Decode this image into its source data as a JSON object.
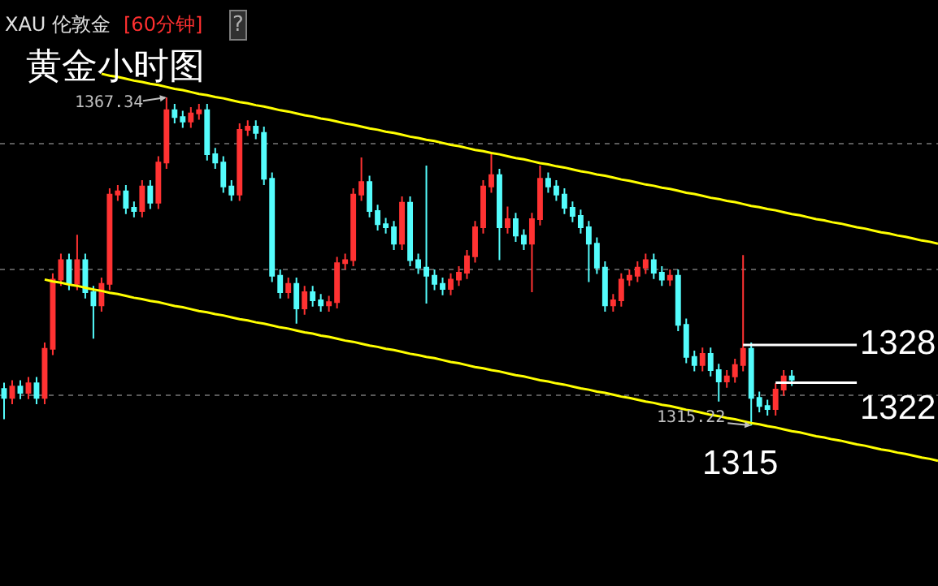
{
  "chart_data": {
    "type": "candlestick",
    "title": "黄金小时图",
    "categories": [
      null,
      null,
      null,
      null,
      null,
      null,
      null,
      null,
      null,
      null,
      null,
      null,
      null,
      null,
      null,
      null,
      null,
      null,
      null,
      null,
      null,
      null,
      null,
      null,
      null,
      null,
      null,
      null,
      null,
      null,
      null,
      null,
      null,
      null,
      null,
      null,
      null,
      null,
      null,
      null,
      null,
      null,
      null,
      null,
      null,
      null,
      null,
      null,
      null,
      null,
      null,
      null,
      null,
      null,
      null,
      null,
      null,
      null,
      null,
      null,
      null,
      null,
      null,
      null,
      null,
      null,
      null,
      null,
      null,
      null,
      null,
      null,
      null,
      null,
      null,
      null,
      null,
      null,
      null,
      null,
      null,
      null,
      null,
      null,
      null,
      null,
      null,
      null,
      null,
      null,
      null,
      null,
      null,
      null,
      null,
      null,
      null,
      null,
      null,
      null,
      null,
      null,
      null,
      null,
      null,
      null,
      null,
      null,
      null,
      null,
      null,
      null,
      null,
      null,
      null,
      null
    ],
    "ohlc": [
      [
        1321.0,
        1322.0,
        1316.2,
        1319.6
      ],
      [
        1319.6,
        1322.4,
        1318.6,
        1321.4
      ],
      [
        1321.4,
        1322.4,
        1319.4,
        1320.4
      ],
      [
        1320.4,
        1322.9,
        1319.4,
        1321.9
      ],
      [
        1321.9,
        1322.9,
        1318.6,
        1319.6
      ],
      [
        1319.6,
        1328.4,
        1318.6,
        1327.4
      ],
      [
        1327.4,
        1339.4,
        1326.4,
        1338.4
      ],
      [
        1338.4,
        1342.5,
        1337.4,
        1341.5
      ],
      [
        1341.5,
        1342.5,
        1336.7,
        1337.7
      ],
      [
        1337.7,
        1345.5,
        1336.7,
        1341.5
      ],
      [
        1341.5,
        1342.5,
        1335.4,
        1336.4
      ],
      [
        1336.4,
        1337.4,
        1329.0,
        1334.3
      ],
      [
        1334.3,
        1338.7,
        1333.3,
        1337.7
      ],
      [
        1337.7,
        1352.9,
        1336.7,
        1351.9
      ],
      [
        1351.9,
        1353.4,
        1350.9,
        1352.4
      ],
      [
        1352.4,
        1353.4,
        1348.8,
        1349.8
      ],
      [
        1349.8,
        1350.8,
        1348.3,
        1349.3
      ],
      [
        1349.3,
        1354.2,
        1348.3,
        1353.2
      ],
      [
        1353.2,
        1354.2,
        1349.6,
        1350.6
      ],
      [
        1350.6,
        1358.0,
        1349.6,
        1357.0
      ],
      [
        1357.0,
        1367.34,
        1356.0,
        1365.3
      ],
      [
        1365.3,
        1366.3,
        1363.2,
        1364.2
      ],
      [
        1364.2,
        1365.2,
        1362.5,
        1363.5
      ],
      [
        1363.5,
        1365.8,
        1362.5,
        1364.8
      ],
      [
        1364.8,
        1366.3,
        1363.8,
        1365.3
      ],
      [
        1365.3,
        1366.3,
        1357.3,
        1358.3
      ],
      [
        1358.3,
        1359.3,
        1356.0,
        1357.0
      ],
      [
        1357.0,
        1358.0,
        1352.2,
        1353.2
      ],
      [
        1353.2,
        1354.2,
        1350.9,
        1351.9
      ],
      [
        1351.9,
        1363.2,
        1350.9,
        1362.2
      ],
      [
        1362.2,
        1363.7,
        1361.2,
        1362.7
      ],
      [
        1362.7,
        1363.7,
        1360.7,
        1361.7
      ],
      [
        1361.7,
        1362.7,
        1353.4,
        1354.4
      ],
      [
        1354.4,
        1355.4,
        1338.0,
        1339.0
      ],
      [
        1339.0,
        1340.0,
        1335.4,
        1336.4
      ],
      [
        1336.4,
        1338.7,
        1335.4,
        1337.7
      ],
      [
        1337.7,
        1338.7,
        1331.4,
        1333.8
      ],
      [
        1333.8,
        1337.4,
        1332.8,
        1336.4
      ],
      [
        1336.4,
        1337.4,
        1334.1,
        1335.1
      ],
      [
        1335.1,
        1336.1,
        1333.3,
        1334.3
      ],
      [
        1334.3,
        1335.8,
        1333.3,
        1334.8
      ],
      [
        1334.8,
        1342.0,
        1333.8,
        1341.0
      ],
      [
        1341.0,
        1342.5,
        1340.0,
        1341.5
      ],
      [
        1341.5,
        1352.9,
        1340.5,
        1351.9
      ],
      [
        1351.9,
        1357.8,
        1350.9,
        1353.9
      ],
      [
        1353.9,
        1354.9,
        1348.3,
        1349.3
      ],
      [
        1349.3,
        1350.3,
        1346.2,
        1347.2
      ],
      [
        1347.2,
        1348.2,
        1345.7,
        1346.7
      ],
      [
        1346.7,
        1347.7,
        1343.1,
        1344.1
      ],
      [
        1344.1,
        1351.6,
        1343.1,
        1350.6
      ],
      [
        1350.6,
        1351.6,
        1340.5,
        1341.5
      ],
      [
        1341.5,
        1342.5,
        1339.3,
        1340.3
      ],
      [
        1340.3,
        1356.5,
        1334.6,
        1339.0
      ],
      [
        1339.0,
        1340.0,
        1336.7,
        1337.7
      ],
      [
        1337.7,
        1338.7,
        1335.9,
        1336.9
      ],
      [
        1336.9,
        1339.4,
        1335.9,
        1338.4
      ],
      [
        1338.4,
        1340.5,
        1337.4,
        1339.5
      ],
      [
        1339.5,
        1343.1,
        1338.5,
        1342.1
      ],
      [
        1342.1,
        1347.7,
        1341.1,
        1346.7
      ],
      [
        1346.7,
        1354.2,
        1345.7,
        1353.2
      ],
      [
        1353.2,
        1358.3,
        1352.2,
        1355.0
      ],
      [
        1355.0,
        1356.0,
        1341.5,
        1346.7
      ],
      [
        1346.7,
        1350.0,
        1345.7,
        1348.0
      ],
      [
        1348.0,
        1349.0,
        1344.4,
        1345.4
      ],
      [
        1345.4,
        1346.4,
        1343.1,
        1344.1
      ],
      [
        1344.1,
        1349.0,
        1336.4,
        1348.0
      ],
      [
        1348.0,
        1356.5,
        1347.0,
        1354.4
      ],
      [
        1354.4,
        1355.4,
        1352.2,
        1353.2
      ],
      [
        1353.2,
        1354.2,
        1350.9,
        1351.9
      ],
      [
        1351.9,
        1352.9,
        1348.8,
        1349.8
      ],
      [
        1349.8,
        1350.8,
        1347.5,
        1348.5
      ],
      [
        1348.5,
        1349.5,
        1345.7,
        1346.7
      ],
      [
        1346.7,
        1347.7,
        1338.0,
        1344.1
      ],
      [
        1344.1,
        1345.1,
        1339.3,
        1340.3
      ],
      [
        1340.3,
        1341.3,
        1333.3,
        1334.3
      ],
      [
        1334.3,
        1336.1,
        1333.3,
        1335.1
      ],
      [
        1335.1,
        1339.4,
        1334.1,
        1338.4
      ],
      [
        1338.4,
        1340.0,
        1337.4,
        1339.0
      ],
      [
        1339.0,
        1341.3,
        1338.0,
        1340.3
      ],
      [
        1340.3,
        1342.5,
        1339.3,
        1341.5
      ],
      [
        1341.5,
        1342.5,
        1338.5,
        1339.5
      ],
      [
        1339.5,
        1340.5,
        1337.4,
        1338.4
      ],
      [
        1338.4,
        1340.0,
        1337.4,
        1339.0
      ],
      [
        1339.0,
        1340.0,
        1330.2,
        1331.2
      ],
      [
        1331.2,
        1332.2,
        1325.1,
        1326.1
      ],
      [
        1326.1,
        1327.1,
        1323.8,
        1324.8
      ],
      [
        1324.8,
        1327.6,
        1323.8,
        1326.6
      ],
      [
        1326.6,
        1327.6,
        1323.0,
        1324.0
      ],
      [
        1324.0,
        1325.0,
        1319.0,
        1322.2
      ],
      [
        1322.2,
        1324.0,
        1321.2,
        1323.0
      ],
      [
        1323.0,
        1325.8,
        1322.0,
        1324.8
      ],
      [
        1324.8,
        1342.3,
        1323.8,
        1327.4
      ],
      [
        1327.4,
        1328.4,
        1315.22,
        1319.6
      ],
      [
        1319.6,
        1320.6,
        1317.3,
        1318.3
      ],
      [
        1318.3,
        1319.3,
        1316.8,
        1317.8
      ],
      [
        1317.8,
        1321.9,
        1316.8,
        1320.9
      ],
      [
        1320.9,
        1324.0,
        1319.9,
        1323.0
      ],
      [
        1323.0,
        1324.0,
        1321.5,
        1322.5
      ],
      null,
      null,
      null,
      null,
      null,
      null,
      null,
      null,
      null,
      null,
      null,
      null,
      null,
      null,
      null,
      null,
      null,
      null
    ],
    "colors": [
      "#54fcfc",
      "#ff3232",
      "#54fcfc",
      "#ff3232",
      "#54fcfc",
      "#ff3232",
      "#ff3232",
      "#ff3232",
      "#54fcfc",
      "#ff3232",
      "#54fcfc",
      "#54fcfc",
      "#ff3232",
      "#ff3232",
      "#ff3232",
      "#54fcfc",
      "#54fcfc",
      "#ff3232",
      "#54fcfc",
      "#ff3232",
      "#ff3232",
      "#54fcfc",
      "#54fcfc",
      "#ff3232",
      "#ff3232",
      "#54fcfc",
      "#54fcfc",
      "#54fcfc",
      "#54fcfc",
      "#ff3232",
      "#ff3232",
      "#54fcfc",
      "#54fcfc",
      "#54fcfc",
      "#54fcfc",
      "#ff3232",
      "#54fcfc",
      "#ff3232",
      "#54fcfc",
      "#54fcfc",
      "#ff3232",
      "#ff3232",
      "#ff3232",
      "#ff3232",
      "#ff3232",
      "#54fcfc",
      "#54fcfc",
      "#54fcfc",
      "#54fcfc",
      "#ff3232",
      "#54fcfc",
      "#54fcfc",
      "#54fcfc",
      "#54fcfc",
      "#54fcfc",
      "#ff3232",
      "#ff3232",
      "#ff3232",
      "#ff3232",
      "#ff3232",
      "#ff3232",
      "#54fcfc",
      "#ff3232",
      "#54fcfc",
      "#54fcfc",
      "#ff3232",
      "#ff3232",
      "#54fcfc",
      "#54fcfc",
      "#54fcfc",
      "#54fcfc",
      "#54fcfc",
      "#54fcfc",
      "#54fcfc",
      "#54fcfc",
      "#ff3232",
      "#ff3232",
      "#ff3232",
      "#ff3232",
      "#ff3232",
      "#54fcfc",
      "#54fcfc",
      "#ff3232",
      "#54fcfc",
      "#54fcfc",
      "#54fcfc",
      "#ff3232",
      "#54fcfc",
      "#54fcfc",
      "#ff3232",
      "#ff3232",
      "#ff3232",
      "#54fcfc",
      "#54fcfc",
      "#54fcfc",
      "#ff3232",
      "#ff3232",
      "#54fcfc",
      null,
      null,
      null,
      null,
      null,
      null,
      null,
      null,
      null,
      null,
      null,
      null,
      null,
      null,
      null,
      null,
      null,
      null
    ],
    "series": [
      {
        "type": "line",
        "color": "#ffff00",
        "values": [
          null,
          null,
          null,
          null,
          null,
          null,
          null,
          null,
          null,
          null,
          null,
          null,
          1371.1,
          1370.8,
          1370.6,
          1370.3,
          1370.0,
          1369.8,
          1369.5,
          1369.3,
          1369.0,
          1368.7,
          1368.5,
          1368.2,
          1367.9,
          1367.7,
          1367.4,
          1367.2,
          1366.9,
          1366.6,
          1366.4,
          1366.1,
          1365.9,
          1365.6,
          1365.3,
          1365.1,
          1364.8,
          1364.5,
          1364.3,
          1364.0,
          1363.8,
          1363.5,
          1363.2,
          1363.0,
          1362.7,
          1362.4,
          1362.2,
          1361.9,
          1361.7,
          1361.4,
          1361.1,
          1360.9,
          1360.6,
          1360.4,
          1360.1,
          1359.8,
          1359.6,
          1359.3,
          1359.0,
          1358.8,
          1358.5,
          1358.3,
          1358.0,
          1357.7,
          1357.5,
          1357.2,
          1356.9,
          1356.7,
          1356.4,
          1356.2,
          1355.9,
          1355.6,
          1355.4,
          1355.1,
          1354.9,
          1354.6,
          1354.3,
          1354.1,
          1353.8,
          1353.5,
          1353.3,
          1353.0,
          1352.8,
          1352.5,
          1352.2,
          1352.0,
          1351.7,
          1351.4,
          1351.2,
          1350.9,
          1350.7,
          1350.4,
          1350.1,
          1349.9,
          1349.6,
          1349.4,
          1349.1,
          1348.8,
          1348.6,
          1348.3,
          1348.0,
          1347.8,
          1347.5,
          1347.3,
          1347.0,
          1346.7,
          1346.5,
          1346.2,
          1345.9,
          1345.7,
          1345.4,
          1345.2,
          1344.9,
          1344.6,
          1344.4,
          1344.1
        ]
      },
      {
        "type": "line",
        "color": "#ffff00",
        "values": [
          null,
          null,
          null,
          null,
          null,
          1338.4,
          1338.1,
          1337.9,
          1337.6,
          1337.4,
          1337.1,
          1336.8,
          1336.6,
          1336.3,
          1336.1,
          1335.8,
          1335.5,
          1335.3,
          1335.0,
          1334.8,
          1334.5,
          1334.2,
          1334.0,
          1333.7,
          1333.4,
          1333.2,
          1332.9,
          1332.7,
          1332.4,
          1332.1,
          1331.9,
          1331.6,
          1331.4,
          1331.1,
          1330.8,
          1330.6,
          1330.3,
          1330.0,
          1329.8,
          1329.5,
          1329.3,
          1329.0,
          1328.7,
          1328.5,
          1328.2,
          1327.9,
          1327.7,
          1327.4,
          1327.2,
          1326.9,
          1326.6,
          1326.4,
          1326.1,
          1325.9,
          1325.6,
          1325.3,
          1325.1,
          1324.8,
          1324.5,
          1324.3,
          1324.0,
          1323.8,
          1323.5,
          1323.2,
          1323.0,
          1322.7,
          1322.4,
          1322.2,
          1321.9,
          1321.7,
          1321.4,
          1321.1,
          1320.9,
          1320.6,
          1320.4,
          1320.1,
          1319.8,
          1319.6,
          1319.3,
          1319.0,
          1318.8,
          1318.5,
          1318.3,
          1318.0,
          1317.7,
          1317.5,
          1317.2,
          1316.9,
          1316.7,
          1316.4,
          1316.2,
          1315.9,
          1315.6,
          1315.4,
          1315.1,
          1314.9,
          1314.6,
          1314.3,
          1314.1,
          1313.8,
          1313.5,
          1313.3,
          1313.0,
          1312.8,
          1312.5,
          1312.2,
          1312.0,
          1311.7,
          1311.4,
          1311.2,
          1310.9,
          1310.7,
          1310.4,
          1310.1,
          1309.9,
          1309.6
        ]
      },
      {
        "type": "line",
        "color": "#ffffff",
        "values": [
          null,
          null,
          null,
          null,
          null,
          null,
          null,
          null,
          null,
          null,
          null,
          null,
          null,
          null,
          null,
          null,
          null,
          null,
          null,
          null,
          null,
          null,
          null,
          null,
          null,
          null,
          null,
          null,
          null,
          null,
          null,
          null,
          null,
          null,
          null,
          null,
          null,
          null,
          null,
          null,
          null,
          null,
          null,
          null,
          null,
          null,
          null,
          null,
          null,
          null,
          null,
          null,
          null,
          null,
          null,
          null,
          null,
          null,
          null,
          null,
          null,
          null,
          null,
          null,
          null,
          null,
          null,
          null,
          null,
          null,
          null,
          null,
          null,
          null,
          null,
          null,
          null,
          null,
          null,
          null,
          null,
          null,
          null,
          null,
          null,
          null,
          null,
          null,
          null,
          null,
          null,
          1328,
          1328,
          1328,
          1328,
          1328,
          1328,
          1328,
          1328,
          1328,
          1328,
          1328,
          1328,
          1328,
          1328,
          1328,
          null,
          null,
          null,
          null,
          null,
          null,
          null,
          null,
          null,
          null
        ]
      },
      {
        "type": "line",
        "color": "#ffffff",
        "values": [
          null,
          null,
          null,
          null,
          null,
          null,
          null,
          null,
          null,
          null,
          null,
          null,
          null,
          null,
          null,
          null,
          null,
          null,
          null,
          null,
          null,
          null,
          null,
          null,
          null,
          null,
          null,
          null,
          null,
          null,
          null,
          null,
          null,
          null,
          null,
          null,
          null,
          null,
          null,
          null,
          null,
          null,
          null,
          null,
          null,
          null,
          null,
          null,
          null,
          null,
          null,
          null,
          null,
          null,
          null,
          null,
          null,
          null,
          null,
          null,
          null,
          null,
          null,
          null,
          null,
          null,
          null,
          null,
          null,
          null,
          null,
          null,
          null,
          null,
          null,
          null,
          null,
          null,
          null,
          null,
          null,
          null,
          null,
          null,
          null,
          null,
          null,
          null,
          null,
          null,
          null,
          null,
          null,
          null,
          null,
          1322,
          1322,
          1322,
          1322,
          1322,
          1322,
          1322,
          1322,
          1322,
          1322,
          1322,
          null,
          null,
          null,
          null,
          null,
          null,
          null,
          null,
          null,
          null
        ]
      }
    ],
    "ylim": [
      1289.7,
      1382.82
    ],
    "yticks": [
      {
        "value": 1320,
        "label": null
      },
      {
        "value": 1340,
        "label": null
      },
      {
        "value": 1360,
        "label": null
      }
    ],
    "grid": "y",
    "annotations": [
      "XAU 伦敦金",
      "[60分钟]",
      "?",
      "1315",
      "1367.34",
      "1315.22",
      "1328",
      "1322"
    ]
  }
}
